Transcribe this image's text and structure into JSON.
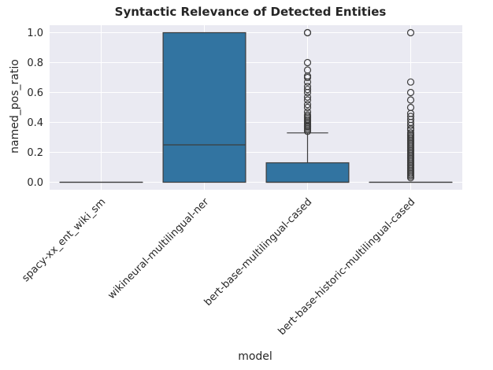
{
  "chart_data": {
    "type": "box",
    "title": "Syntactic Relevance of Detected Entities",
    "xlabel": "model",
    "ylabel": "named_pos_ratio",
    "ylim": [
      -0.05,
      1.05
    ],
    "yticks": [
      "0.0",
      "0.2",
      "0.4",
      "0.6",
      "0.8",
      "1.0"
    ],
    "grid": true,
    "colors": {
      "background": "#eaeaf2",
      "grid": "#ffffff",
      "box": "#3274a1",
      "line": "#3d3d3d"
    },
    "categories": [
      "spacy-xx_ent_wiki_sm",
      "wikineural-multilingual-ner",
      "bert-base-multilingual-cased",
      "bert-base-historic-multilingual-cased"
    ],
    "boxes": [
      {
        "q1": 0.0,
        "median": 0.0,
        "q3": 0.0,
        "whisker_low": 0.0,
        "whisker_high": 0.0,
        "outliers": []
      },
      {
        "q1": 0.0,
        "median": 0.25,
        "q3": 1.0,
        "whisker_low": 0.0,
        "whisker_high": 1.0,
        "outliers": []
      },
      {
        "q1": 0.0,
        "median": 0.0,
        "q3": 0.13,
        "whisker_low": 0.0,
        "whisker_high": 0.33,
        "outliers": [
          0.34,
          0.35,
          0.36,
          0.37,
          0.375,
          0.38,
          0.39,
          0.4,
          0.41,
          0.42,
          0.43,
          0.44,
          0.45,
          0.47,
          0.5,
          0.52,
          0.55,
          0.57,
          0.6,
          0.62,
          0.64,
          0.67,
          0.7,
          0.71,
          0.75,
          0.8,
          1.0,
          1.0
        ]
      },
      {
        "q1": 0.0,
        "median": 0.0,
        "q3": 0.0,
        "whisker_low": 0.0,
        "whisker_high": 0.0,
        "outliers": [
          0.03,
          0.04,
          0.05,
          0.06,
          0.07,
          0.08,
          0.09,
          0.1,
          0.11,
          0.12,
          0.13,
          0.14,
          0.15,
          0.16,
          0.17,
          0.18,
          0.19,
          0.2,
          0.21,
          0.22,
          0.23,
          0.24,
          0.25,
          0.26,
          0.27,
          0.28,
          0.29,
          0.3,
          0.31,
          0.32,
          0.33,
          0.35,
          0.36,
          0.38,
          0.4,
          0.42,
          0.44,
          0.46,
          0.5,
          0.55,
          0.6,
          0.67,
          1.0
        ]
      }
    ]
  }
}
